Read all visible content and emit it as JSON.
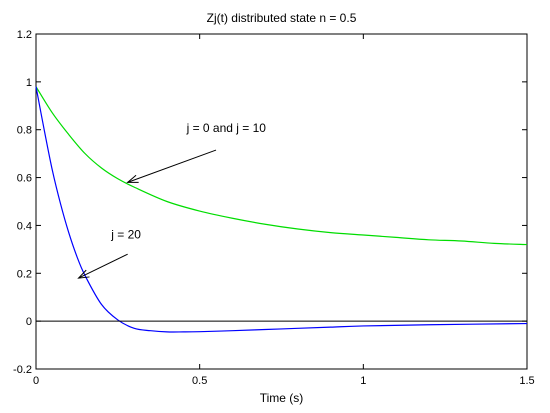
{
  "chart_data": {
    "type": "line",
    "title": "Zj(t) distributed state    n = 0.5",
    "xlabel": "Time  (s)",
    "ylabel": "",
    "xlim": [
      0,
      1.5
    ],
    "ylim": [
      -0.2,
      1.2
    ],
    "xticks": [
      0,
      0.5,
      1,
      1.5
    ],
    "xtick_labels": [
      "0",
      "0.5",
      "1",
      "1.5"
    ],
    "yticks": [
      -0.2,
      0,
      0.2,
      0.4,
      0.6,
      0.8,
      1,
      1.2
    ],
    "ytick_labels": [
      "-0.2",
      "0",
      "0.2",
      "0.4",
      "0.6",
      "0.8",
      "1",
      "1.2"
    ],
    "grid": false,
    "reference_line": {
      "y": 0,
      "color": "#000000"
    },
    "series": [
      {
        "color": "#00dd00",
        "x": [
          0,
          0.05,
          0.1,
          0.15,
          0.2,
          0.25,
          0.3,
          0.4,
          0.5,
          0.6,
          0.7,
          0.8,
          0.9,
          1.0,
          1.1,
          1.2,
          1.3,
          1.4,
          1.5
        ],
        "y": [
          0.98,
          0.87,
          0.78,
          0.7,
          0.64,
          0.595,
          0.56,
          0.5,
          0.46,
          0.43,
          0.405,
          0.385,
          0.37,
          0.36,
          0.35,
          0.34,
          0.335,
          0.325,
          0.32
        ]
      },
      {
        "color": "#0000ff",
        "x": [
          0,
          0.025,
          0.05,
          0.075,
          0.1,
          0.125,
          0.15,
          0.2,
          0.25,
          0.3,
          0.35,
          0.4,
          0.45,
          0.5,
          0.6,
          0.7,
          0.8,
          0.9,
          1.0,
          1.2,
          1.5
        ],
        "y": [
          0.98,
          0.8,
          0.63,
          0.49,
          0.37,
          0.27,
          0.19,
          0.07,
          0.005,
          -0.03,
          -0.04,
          -0.045,
          -0.045,
          -0.044,
          -0.04,
          -0.035,
          -0.03,
          -0.025,
          -0.02,
          -0.015,
          -0.01
        ]
      }
    ],
    "annotations": [
      {
        "text": "j = 0 and j = 10",
        "text_x": 0.46,
        "text_y": 0.79,
        "tail_x": 0.55,
        "tail_y": 0.715,
        "head_x": 0.28,
        "head_y": 0.58
      },
      {
        "text": "j = 20",
        "text_x": 0.23,
        "text_y": 0.345,
        "tail_x": 0.28,
        "tail_y": 0.28,
        "head_x": 0.13,
        "head_y": 0.18
      }
    ]
  }
}
